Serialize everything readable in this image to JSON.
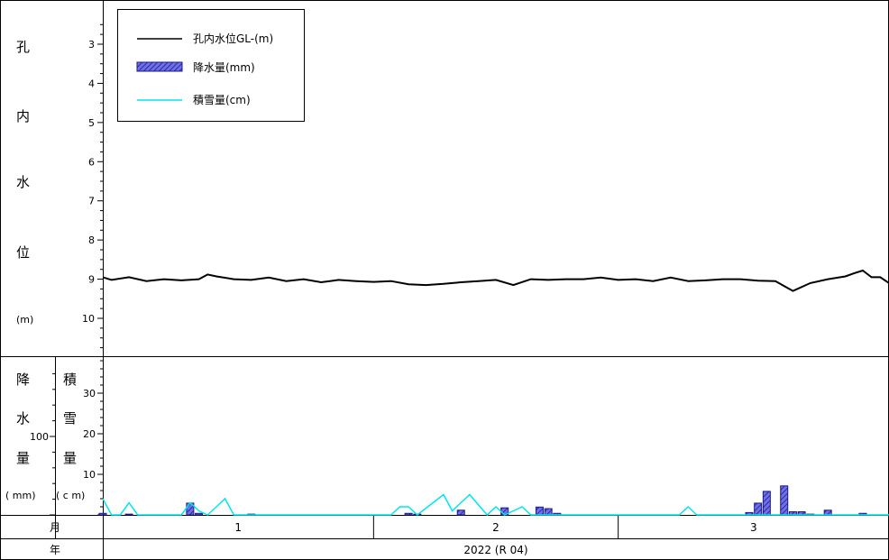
{
  "colors": {
    "water_level": "#000000",
    "precip_fill": "#3f3fcf",
    "precip_hatch": "#1a1a8c",
    "snow": "#00e5ee",
    "frame": "#000000"
  },
  "left_labels": {
    "water_level": [
      "孔",
      "内",
      "水",
      "位",
      "(m)"
    ],
    "precip": [
      "降",
      "水",
      "量",
      "( mm)"
    ],
    "snow": [
      "積",
      "雪",
      "量",
      "( c m)"
    ],
    "month_row": "月",
    "year_row": "年"
  },
  "legend": {
    "water_level": "孔内水位GL-(m)",
    "precip": "降水量(mm)",
    "snow": "積雪量(cm)"
  },
  "bottom": {
    "months": [
      "1",
      "2",
      "3"
    ],
    "year": "2022 (R 04)"
  },
  "chart_data": [
    {
      "type": "line",
      "title": "",
      "ylabel": "孔内水位",
      "yunit": "(m)",
      "inverted_y": true,
      "ylim": [
        2,
        11
      ],
      "yticks": [
        3,
        4,
        5,
        6,
        7,
        8,
        9,
        10
      ],
      "xlim": [
        1,
        91
      ],
      "series": [
        {
          "name": "孔内水位GL-(m)",
          "x": [
            1,
            2,
            4,
            6,
            8,
            10,
            12,
            13,
            14,
            16,
            18,
            20,
            22,
            24,
            26,
            27,
            28,
            30,
            32,
            34,
            36,
            38,
            40,
            42,
            44,
            46,
            48,
            50,
            52,
            54,
            56,
            58,
            60,
            62,
            64,
            66,
            68,
            70,
            72,
            74,
            76,
            78,
            80,
            82,
            84,
            86,
            87,
            88,
            89,
            90,
            91
          ],
          "y": [
            8.95,
            9.02,
            8.95,
            9.05,
            9.0,
            9.03,
            9.0,
            8.88,
            8.93,
            9.0,
            9.02,
            8.96,
            9.05,
            9.0,
            9.08,
            9.05,
            9.02,
            9.05,
            9.07,
            9.05,
            9.13,
            9.15,
            9.12,
            9.08,
            9.05,
            9.02,
            9.15,
            9.0,
            9.02,
            9.0,
            9.0,
            8.96,
            9.02,
            9.0,
            9.05,
            8.96,
            9.05,
            9.03,
            9.0,
            9.0,
            9.04,
            9.05,
            9.3,
            9.1,
            9.0,
            8.93,
            8.85,
            8.78,
            8.95,
            8.95,
            9.1
          ]
        }
      ]
    },
    {
      "type": "bar",
      "title": "",
      "ylabel": "降水量",
      "yunit": "(mm)",
      "ylim": [
        0,
        160
      ],
      "yticks": [
        100
      ],
      "xlim": [
        1,
        91
      ],
      "series": [
        {
          "name": "降水量(mm)",
          "x": [
            1,
            4,
            11,
            12,
            18,
            36,
            37,
            42,
            47,
            51,
            52,
            53,
            75,
            76,
            77,
            79,
            80,
            81,
            82,
            84,
            88
          ],
          "values": [
            2,
            1,
            15,
            2,
            1,
            2,
            1,
            6,
            9,
            10,
            8,
            2,
            3,
            15,
            30,
            37,
            4,
            4,
            1,
            6,
            2
          ]
        }
      ]
    },
    {
      "type": "line",
      "title": "",
      "ylabel": "積雪量",
      "yunit": "(cm)",
      "ylim": [
        0,
        40
      ],
      "yticks": [
        10,
        20,
        30
      ],
      "xlim": [
        1,
        91
      ],
      "series": [
        {
          "name": "積雪量(cm)",
          "x": [
            1,
            2,
            3,
            4,
            5,
            6,
            7,
            10,
            11,
            12,
            13,
            14,
            15,
            16,
            17,
            18,
            19,
            34,
            35,
            36,
            37,
            40,
            41,
            42,
            43,
            45,
            46,
            47,
            48,
            49,
            50,
            51,
            52,
            53,
            67,
            68,
            69,
            91
          ],
          "y": [
            4,
            0,
            0,
            3,
            0,
            0,
            0,
            0,
            3,
            1,
            0,
            2,
            4,
            0,
            0,
            0,
            0,
            0,
            2,
            2,
            0,
            5,
            1,
            3,
            5,
            0,
            2,
            0,
            1,
            2,
            0,
            0,
            0,
            0,
            0,
            2,
            0,
            0
          ]
        }
      ]
    }
  ]
}
